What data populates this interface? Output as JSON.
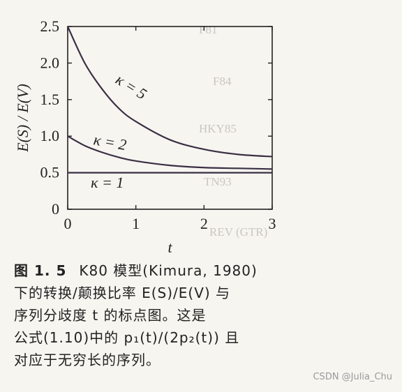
{
  "chart_data": {
    "type": "line",
    "xlabel": "t",
    "ylabel": "E(S) / E(V)",
    "xlim": [
      0,
      3
    ],
    "ylim": [
      0,
      2.5
    ],
    "x_ticks": [
      0,
      1,
      2,
      3
    ],
    "y_ticks": [
      0,
      0.5,
      1.0,
      1.5,
      2.0,
      2.5
    ],
    "x_tick_labels": [
      "0",
      "1",
      "2",
      "3"
    ],
    "y_tick_labels": [
      "0",
      "0.5",
      "1.0",
      "1.5",
      "2.0",
      "2.5"
    ],
    "grid": false,
    "series": [
      {
        "name": "κ = 5",
        "x": [
          0,
          0.25,
          0.5,
          0.75,
          1,
          1.5,
          2,
          2.5,
          3
        ],
        "y": [
          2.5,
          2.0,
          1.65,
          1.38,
          1.2,
          0.95,
          0.82,
          0.75,
          0.72
        ]
      },
      {
        "name": "κ = 2",
        "x": [
          0,
          0.25,
          0.5,
          0.75,
          1,
          1.5,
          2,
          2.5,
          3
        ],
        "y": [
          1.0,
          0.87,
          0.78,
          0.71,
          0.66,
          0.6,
          0.57,
          0.56,
          0.55
        ]
      },
      {
        "name": "κ = 1",
        "x": [
          0,
          3
        ],
        "y": [
          0.5,
          0.5
        ]
      }
    ]
  },
  "caption": {
    "figure_number": "图 1. 5",
    "lines": [
      "K80 模型(Kimura, 1980)",
      "下的转换/颠换比率 E(S)/E(V) 与",
      "序列分歧度 t 的标点图。这是",
      "公式(1.10)中的 p₁(t)/(2p₂(t)) 且",
      "对应于无穷长的序列。"
    ]
  },
  "background_text": [
    "F81",
    "F84",
    "HKY85",
    "TN93",
    "REV (GTR)"
  ],
  "watermark": "CSDN @Julia_Chu",
  "colors": {
    "line": "#3a2f44",
    "axis": "#222222",
    "background": "#f7f5f0"
  }
}
